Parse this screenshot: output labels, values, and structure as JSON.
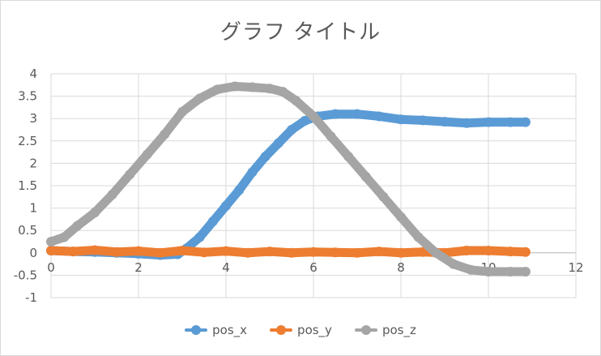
{
  "chart_data": {
    "type": "scatter",
    "title": "グラフ タイトル",
    "xlabel": "",
    "ylabel": "",
    "xlim": [
      0,
      12
    ],
    "ylim": [
      -1,
      4
    ],
    "xticks": [
      0,
      2,
      4,
      6,
      8,
      10,
      12
    ],
    "yticks": [
      -1,
      -0.5,
      0,
      0.5,
      1,
      1.5,
      2,
      2.5,
      3,
      3.5,
      4
    ],
    "grid": true,
    "legend_position": "bottom",
    "series": [
      {
        "name": "pos_x",
        "color": "#5b9bd5",
        "points": [
          [
            0,
            0.05
          ],
          [
            0.5,
            0.03
          ],
          [
            1,
            0.02
          ],
          [
            1.5,
            0.0
          ],
          [
            2,
            -0.02
          ],
          [
            2.5,
            -0.05
          ],
          [
            2.9,
            -0.03
          ],
          [
            3.1,
            0.1
          ],
          [
            3.4,
            0.35
          ],
          [
            3.7,
            0.7
          ],
          [
            4,
            1.05
          ],
          [
            4.3,
            1.4
          ],
          [
            4.6,
            1.8
          ],
          [
            4.9,
            2.15
          ],
          [
            5.2,
            2.45
          ],
          [
            5.5,
            2.75
          ],
          [
            5.8,
            2.95
          ],
          [
            6.1,
            3.05
          ],
          [
            6.5,
            3.1
          ],
          [
            7,
            3.1
          ],
          [
            7.5,
            3.05
          ],
          [
            8,
            2.98
          ],
          [
            8.5,
            2.96
          ],
          [
            9,
            2.93
          ],
          [
            9.5,
            2.9
          ],
          [
            10,
            2.92
          ],
          [
            10.5,
            2.92
          ],
          [
            10.85,
            2.92
          ]
        ]
      },
      {
        "name": "pos_y",
        "color": "#ed7d31",
        "points": [
          [
            0,
            0.05
          ],
          [
            0.5,
            0.03
          ],
          [
            1,
            0.06
          ],
          [
            1.5,
            0.02
          ],
          [
            2,
            0.04
          ],
          [
            2.5,
            0.0
          ],
          [
            3,
            0.05
          ],
          [
            3.5,
            0.01
          ],
          [
            4,
            0.04
          ],
          [
            4.5,
            0.0
          ],
          [
            5,
            0.03
          ],
          [
            5.5,
            0.0
          ],
          [
            6,
            0.02
          ],
          [
            6.5,
            0.01
          ],
          [
            7,
            0.0
          ],
          [
            7.5,
            0.03
          ],
          [
            8,
            0.0
          ],
          [
            8.5,
            0.02
          ],
          [
            9,
            0.0
          ],
          [
            9.5,
            0.05
          ],
          [
            10,
            0.05
          ],
          [
            10.5,
            0.03
          ],
          [
            10.85,
            0.02
          ]
        ]
      },
      {
        "name": "pos_z",
        "color": "#a5a5a5",
        "points": [
          [
            0,
            0.25
          ],
          [
            0.3,
            0.35
          ],
          [
            0.6,
            0.6
          ],
          [
            1,
            0.9
          ],
          [
            1.4,
            1.3
          ],
          [
            1.8,
            1.75
          ],
          [
            2.2,
            2.2
          ],
          [
            2.6,
            2.65
          ],
          [
            3,
            3.15
          ],
          [
            3.4,
            3.45
          ],
          [
            3.8,
            3.65
          ],
          [
            4.2,
            3.72
          ],
          [
            4.6,
            3.7
          ],
          [
            5,
            3.67
          ],
          [
            5.3,
            3.6
          ],
          [
            5.6,
            3.4
          ],
          [
            6,
            3.05
          ],
          [
            6.4,
            2.6
          ],
          [
            6.8,
            2.15
          ],
          [
            7.2,
            1.7
          ],
          [
            7.6,
            1.25
          ],
          [
            8,
            0.8
          ],
          [
            8.4,
            0.35
          ],
          [
            8.8,
            0.0
          ],
          [
            9.2,
            -0.25
          ],
          [
            9.6,
            -0.38
          ],
          [
            10,
            -0.42
          ],
          [
            10.5,
            -0.42
          ],
          [
            10.85,
            -0.42
          ]
        ]
      }
    ]
  }
}
